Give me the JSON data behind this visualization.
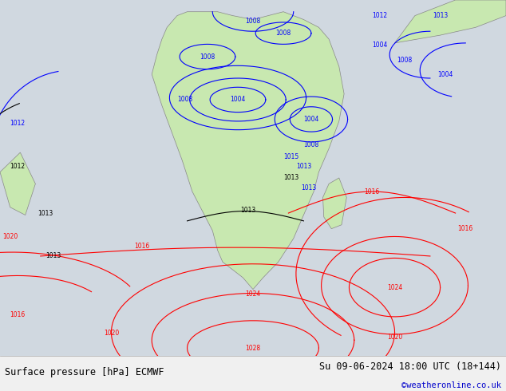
{
  "left_label": "Surface pressure [hPa] ECMWF",
  "right_label": "Su 09-06-2024 18:00 UTC (18+144)",
  "copyright": "©weatheronline.co.uk",
  "bg_map_color": "#d0d8e0",
  "land_color": "#c8e8b0",
  "label_color_left": "#000000",
  "label_color_right": "#000000",
  "copyright_color": "#0000cc",
  "bottom_bar_color": "#f0f0f0",
  "figsize": [
    6.34,
    4.9
  ],
  "dpi": 100,
  "blue": "#0000ff",
  "red": "#ff0000",
  "black": "#000000"
}
